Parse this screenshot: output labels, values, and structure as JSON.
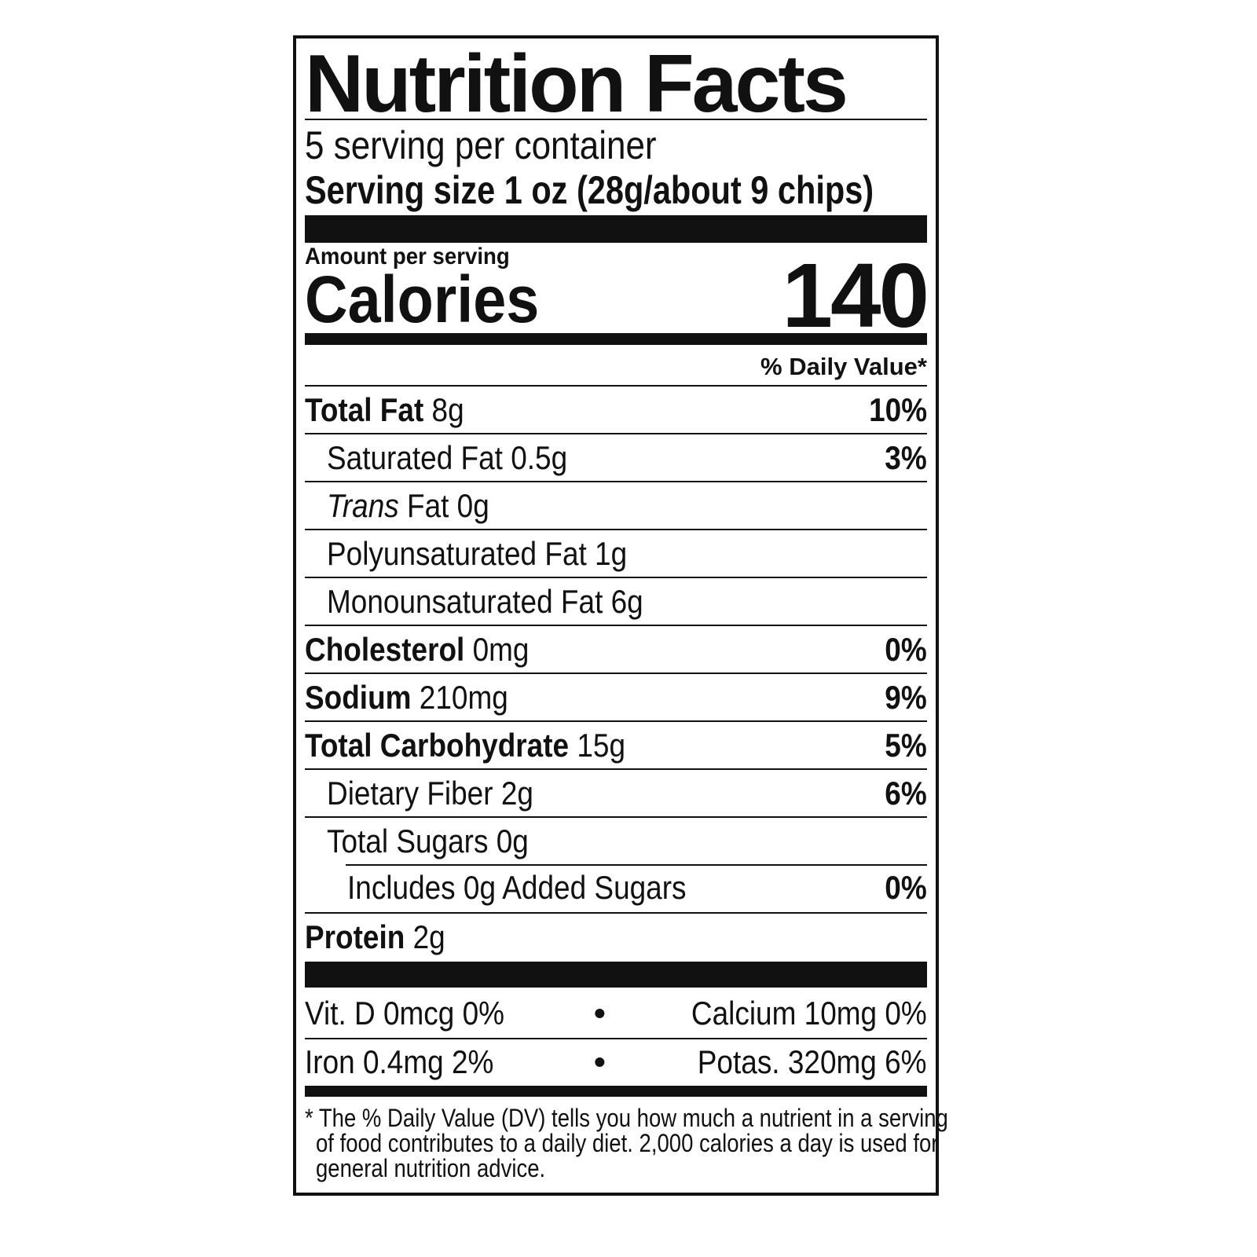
{
  "title": "Nutrition Facts",
  "servings_per_container": "5 serving per container",
  "serving_size": "Serving size 1 oz (28g/about 9 chips)",
  "amount_per_serving": "Amount per serving",
  "calories_label": "Calories",
  "calories_value": "140",
  "daily_value_header": "% Daily Value*",
  "nutrients": [
    {
      "name": "Total Fat",
      "amount": "8g",
      "dv": "10%"
    },
    {
      "name": "Saturated Fat",
      "amount": "0.5g",
      "dv": "3%"
    },
    {
      "name": "Trans",
      "suffix": "Fat 0g"
    },
    {
      "name": "Polyunsaturated Fat 1g"
    },
    {
      "name": "Monounsaturated Fat 6g"
    },
    {
      "name": "Cholesterol",
      "amount": "0mg",
      "dv": "0%"
    },
    {
      "name": "Sodium",
      "amount": "210mg",
      "dv": "9%"
    },
    {
      "name": "Total Carbohydrate",
      "amount": "15g",
      "dv": "5%"
    },
    {
      "name": "Dietary Fiber",
      "amount": "2g",
      "dv": "6%"
    },
    {
      "name": "Total Sugars 0g"
    },
    {
      "name": "Includes 0g Added Sugars",
      "dv": "0%"
    },
    {
      "name": "Protein",
      "amount": "2g"
    }
  ],
  "vitamins": [
    {
      "left": "Vit. D 0mcg 0%",
      "right": "Calcium 10mg 0%"
    },
    {
      "left": "Iron 0.4mg 2%",
      "right": "Potas. 320mg 6%"
    }
  ],
  "separator": "•",
  "footnote": [
    "* The % Daily Value (DV) tells you how much a nutrient in a serving",
    "of food contributes to a daily diet. 2,000 calories a day is used for",
    "general nutrition advice."
  ]
}
